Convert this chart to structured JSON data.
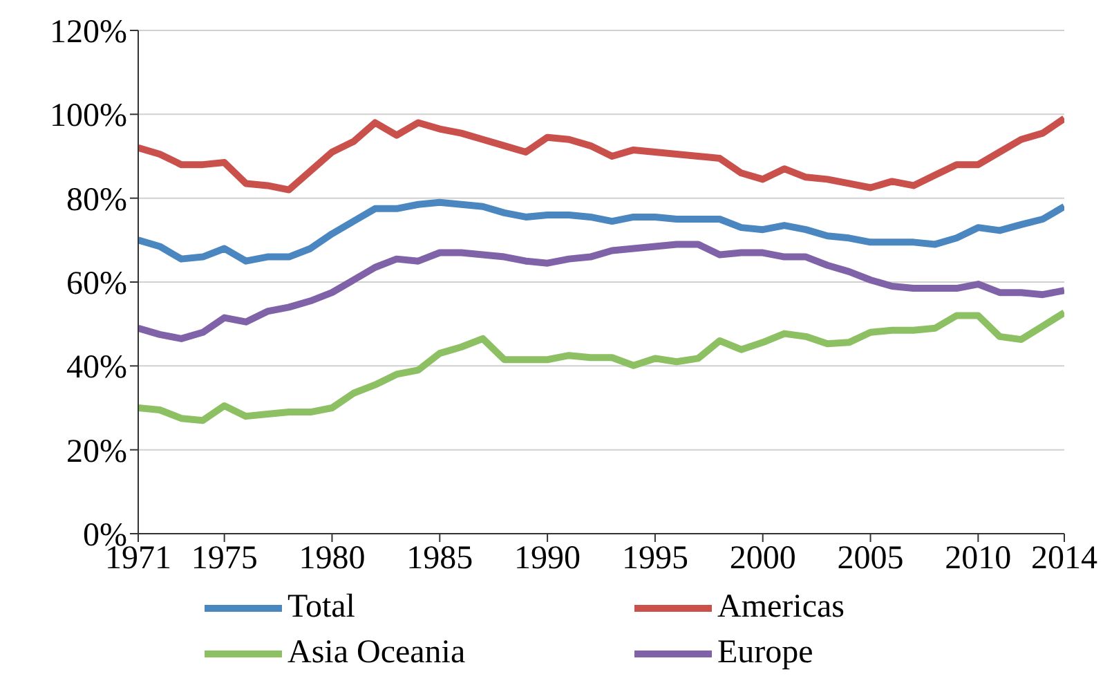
{
  "chart_data": {
    "type": "line",
    "x": [
      1971,
      1972,
      1973,
      1974,
      1975,
      1976,
      1977,
      1978,
      1979,
      1980,
      1981,
      1982,
      1983,
      1984,
      1985,
      1986,
      1987,
      1988,
      1989,
      1990,
      1991,
      1992,
      1993,
      1994,
      1995,
      1996,
      1997,
      1998,
      1999,
      2000,
      2001,
      2002,
      2003,
      2004,
      2005,
      2006,
      2007,
      2008,
      2009,
      2010,
      2011,
      2012,
      2013,
      2014
    ],
    "series": [
      {
        "name": "Total",
        "color": "#4a86c0",
        "values": [
          70,
          68.5,
          65.5,
          66,
          68,
          65,
          66,
          66,
          68,
          71.5,
          74.5,
          77.5,
          77.5,
          78.5,
          79,
          78.5,
          78,
          76.5,
          75.5,
          76,
          76,
          75.5,
          74.5,
          75.5,
          75.5,
          75,
          75,
          75,
          73,
          72.5,
          73.5,
          72.5,
          71,
          70.5,
          69.5,
          69.5,
          69.5,
          69,
          70.5,
          73,
          72.3,
          73.7,
          75,
          78
        ]
      },
      {
        "name": "Americas",
        "color": "#c9504b",
        "values": [
          92,
          90.5,
          88,
          88,
          88.5,
          83.5,
          83,
          82,
          86.5,
          91,
          93.5,
          98,
          95,
          98,
          96.5,
          95.5,
          94,
          92.5,
          91,
          94.5,
          94,
          92.5,
          90,
          91.5,
          91,
          90.5,
          90,
          89.5,
          86,
          84.5,
          87,
          85,
          84.5,
          83.5,
          82.5,
          84,
          83,
          85.5,
          88,
          88,
          91,
          94,
          95.5,
          99
        ]
      },
      {
        "name": "Asia Oceania",
        "color": "#8cc063",
        "values": [
          30,
          29.5,
          27.5,
          27,
          30.5,
          28,
          28.5,
          29,
          29,
          30,
          33.5,
          35.5,
          38,
          39,
          43,
          44.5,
          46.5,
          41.5,
          41.5,
          41.5,
          42.5,
          42,
          42,
          40.1,
          41.8,
          41,
          41.8,
          46,
          43.9,
          45.6,
          47.7,
          47,
          45.3,
          45.6,
          48,
          48.5,
          48.5,
          49,
          52,
          52,
          47,
          46.3,
          49.5,
          52.7
        ]
      },
      {
        "name": "Europe",
        "color": "#7f62a8",
        "values": [
          49,
          47.5,
          46.5,
          48,
          51.5,
          50.5,
          53,
          54,
          55.5,
          57.5,
          60.5,
          63.5,
          65.5,
          65,
          67,
          67,
          66.5,
          66,
          65,
          64.5,
          65.5,
          66,
          67.5,
          68,
          68.5,
          69,
          69,
          66.5,
          67,
          67,
          66,
          66,
          64,
          62.5,
          60.5,
          59,
          58.5,
          58.5,
          58.5,
          59.5,
          57.5,
          57.5,
          57,
          58
        ]
      }
    ],
    "xlim": [
      1971,
      2014
    ],
    "xticks": [
      1971,
      1975,
      1980,
      1985,
      1990,
      1995,
      2000,
      2005,
      2010,
      2014
    ],
    "ylim": [
      0,
      120
    ],
    "yticks": [
      {
        "value": 0,
        "label": "0%"
      },
      {
        "value": 20,
        "label": "20%"
      },
      {
        "value": 40,
        "label": "40%"
      },
      {
        "value": 60,
        "label": "60%"
      },
      {
        "value": 80,
        "label": "80%"
      },
      {
        "value": 100,
        "label": "100%"
      },
      {
        "value": 120,
        "label": "120%"
      }
    ],
    "grid": "y",
    "legend": "bottom",
    "marker": "none",
    "line_style": "solid"
  }
}
